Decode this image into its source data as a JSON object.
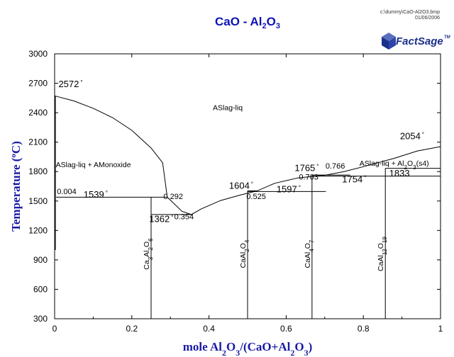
{
  "header": {
    "file_path": "c:\\dummy\\CaO-Al2O3.bmp",
    "file_date": "01/06/2006",
    "logo_text": "FactSage",
    "logo_tm": "TM"
  },
  "chart_data": {
    "type": "line",
    "title": {
      "base": "CaO - Al",
      "sub": "2",
      "tail": "O",
      "sub2": "3"
    },
    "xlabel": {
      "parts": [
        [
          "mole Al",
          ""
        ],
        [
          "2",
          "sub"
        ],
        [
          "O",
          ""
        ],
        [
          "3",
          "sub"
        ],
        [
          "/(CaO+Al",
          ""
        ],
        [
          "2",
          "sub"
        ],
        [
          "O",
          ""
        ],
        [
          "3",
          "sub"
        ],
        [
          ")",
          ""
        ]
      ]
    },
    "ylabel": {
      "parts": [
        [
          "Temperature (",
          ""
        ],
        [
          "o",
          "sup"
        ],
        [
          "C)",
          ""
        ]
      ]
    },
    "xlim": [
      0,
      1
    ],
    "ylim": [
      300,
      3000
    ],
    "xticks": [
      "0",
      "0.2",
      "0.4",
      "0.6",
      "0.8",
      "1"
    ],
    "xtick_values": [
      0,
      0.2,
      0.4,
      0.6,
      0.8,
      1
    ],
    "yticks": [
      "300",
      "600",
      "900",
      "1200",
      "1500",
      "1800",
      "2100",
      "2400",
      "2700",
      "3000"
    ],
    "ytick_values": [
      300,
      600,
      900,
      1200,
      1500,
      1800,
      2100,
      2400,
      2700,
      3000
    ],
    "grid": false,
    "liquidus_left": [
      [
        0,
        2572
      ],
      [
        0.05,
        2520
      ],
      [
        0.1,
        2445
      ],
      [
        0.15,
        2350
      ],
      [
        0.2,
        2220
      ],
      [
        0.25,
        2040
      ],
      [
        0.28,
        1890
      ],
      [
        0.292,
        1539
      ],
      [
        0.33,
        1395
      ],
      [
        0.354,
        1362
      ],
      [
        0.38,
        1420
      ],
      [
        0.43,
        1505
      ],
      [
        0.48,
        1560
      ],
      [
        0.525,
        1604
      ]
    ],
    "liquidus_right": [
      [
        0.525,
        1604
      ],
      [
        0.57,
        1680
      ],
      [
        0.63,
        1735
      ],
      [
        0.703,
        1765
      ],
      [
        0.75,
        1800
      ],
      [
        0.8,
        1850
      ],
      [
        0.88,
        1935
      ],
      [
        0.94,
        2010
      ],
      [
        1,
        2054
      ]
    ],
    "solidus_lines": [
      {
        "x": [
          0.004,
          0.292
        ],
        "y": 1539
      },
      {
        "x": [
          0.25,
          0.354
        ],
        "y": 1362
      },
      {
        "x": [
          0.5,
          0.525
        ],
        "y": 1604
      },
      {
        "x": [
          0.5,
          0.703
        ],
        "y": 1597
      },
      {
        "x": [
          0.667,
          0.766
        ],
        "y": 1765
      },
      {
        "x": [
          0.667,
          1.0
        ],
        "y": 1754
      },
      {
        "x": [
          0.857,
          1.0
        ],
        "y": 1833
      }
    ],
    "compound_lines": [
      {
        "x": 0.25,
        "y": [
          300,
          1539
        ]
      },
      {
        "x": 0.5,
        "y": [
          300,
          1604
        ]
      },
      {
        "x": 0.667,
        "y": [
          300,
          1765
        ]
      },
      {
        "x": 0.857,
        "y": [
          300,
          1833
        ]
      }
    ],
    "annotations": [
      {
        "text": "2572",
        "deg": true,
        "x": 0.01,
        "y": 2660,
        "size": "lg"
      },
      {
        "text": "2054",
        "deg": true,
        "x": 0.895,
        "y": 2130,
        "size": "lg"
      },
      {
        "text": "1765",
        "deg": true,
        "x": 0.622,
        "y": 1805,
        "size": "lg"
      },
      {
        "text": "1754",
        "deg": true,
        "x": 0.745,
        "y": 1690,
        "size": "lg"
      },
      {
        "text": "1833",
        "deg": false,
        "x": 0.867,
        "y": 1750,
        "size": "lg"
      },
      {
        "text": "1604",
        "deg": true,
        "x": 0.452,
        "y": 1625,
        "size": "lg"
      },
      {
        "text": "1597",
        "deg": true,
        "x": 0.575,
        "y": 1590,
        "size": "lg"
      },
      {
        "text": "1539",
        "deg": true,
        "x": 0.075,
        "y": 1535,
        "size": "lg"
      },
      {
        "text": "1362",
        "deg": true,
        "x": 0.245,
        "y": 1285,
        "size": "lg"
      },
      {
        "text": "0.004",
        "deg": false,
        "x": 0.006,
        "y": 1570,
        "size": "sm"
      },
      {
        "text": "0.292",
        "deg": false,
        "x": 0.282,
        "y": 1520,
        "size": "sm"
      },
      {
        "text": "0.354",
        "deg": false,
        "x": 0.31,
        "y": 1315,
        "size": "sm"
      },
      {
        "text": "0.525",
        "deg": false,
        "x": 0.497,
        "y": 1520,
        "size": "sm"
      },
      {
        "text": "0.703",
        "deg": false,
        "x": 0.633,
        "y": 1720,
        "size": "sm"
      },
      {
        "text": "0.766",
        "deg": false,
        "x": 0.702,
        "y": 1830,
        "size": "sm"
      }
    ],
    "phase_labels": [
      {
        "parts": [
          [
            "ASlag-liq",
            ""
          ]
        ],
        "x": 0.41,
        "y": 2425
      },
      {
        "parts": [
          [
            "ASlag-liq + AMonoxide",
            ""
          ]
        ],
        "x": 0.003,
        "y": 1845
      },
      {
        "parts": [
          [
            "ASlag-liq + Al",
            ""
          ],
          [
            "2",
            "sub"
          ],
          [
            "O",
            ""
          ],
          [
            "3",
            "sub"
          ],
          [
            "(s4)",
            ""
          ]
        ],
        "x": 0.79,
        "y": 1860
      }
    ],
    "compound_labels": [
      {
        "parts": [
          [
            "Ca",
            ""
          ],
          [
            "3",
            "sub"
          ],
          [
            "Al",
            ""
          ],
          [
            "2",
            "sub"
          ],
          [
            "O",
            ""
          ],
          [
            "6",
            "sub"
          ]
        ],
        "x": 0.25,
        "y": 960
      },
      {
        "parts": [
          [
            "CaAl",
            ""
          ],
          [
            "2",
            "sub"
          ],
          [
            "O",
            ""
          ],
          [
            "4",
            "sub"
          ]
        ],
        "x": 0.5,
        "y": 960
      },
      {
        "parts": [
          [
            "CaAl",
            ""
          ],
          [
            "4",
            "sub"
          ],
          [
            "O",
            ""
          ],
          [
            "7",
            "sub"
          ]
        ],
        "x": 0.667,
        "y": 960
      },
      {
        "parts": [
          [
            "CaAl",
            ""
          ],
          [
            "12",
            "sub"
          ],
          [
            "O",
            ""
          ],
          [
            "19",
            "sub"
          ]
        ],
        "x": 0.857,
        "y": 960
      }
    ]
  }
}
